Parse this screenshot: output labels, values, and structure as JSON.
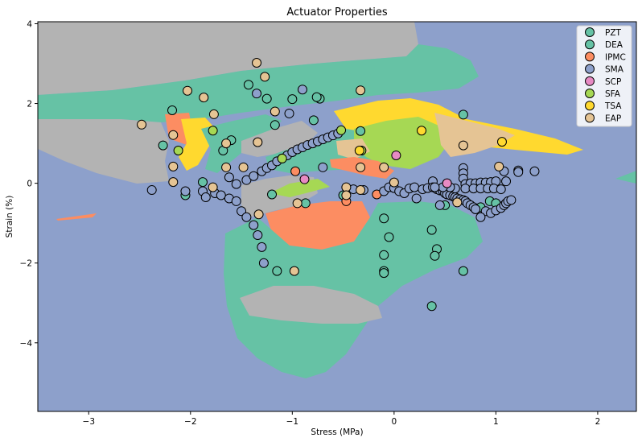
{
  "chart_data": {
    "type": "scatter",
    "title": "Actuator Properties",
    "xlabel": "Stress (MPa)",
    "ylabel": "Strain (%)",
    "xlim": [
      -3.5,
      2.38
    ],
    "ylim": [
      -5.72,
      4.05
    ],
    "xticks": [
      -3,
      -2,
      -1,
      0,
      1,
      2
    ],
    "yticks": [
      -4,
      -2,
      0,
      2,
      4
    ],
    "xtick_labels": [
      "−3",
      "−2",
      "−1",
      "0",
      "1",
      "2"
    ],
    "ytick_labels": [
      "−4",
      "−2",
      "0",
      "2",
      "4"
    ],
    "legend_position": "top-right",
    "background_regions": "decision-boundary color regions per class",
    "colors": {
      "PZT": "#66c2a5",
      "DEA": "#66c2a5",
      "IPMC": "#fc8d62",
      "SMA": "#8da0cb",
      "SCP": "#e78ac3",
      "SFA": "#a6d854",
      "TSA": "#ffd92f",
      "EAP": "#e5c494",
      "Other": "#b3b3b3"
    },
    "series": [
      {
        "name": "PZT",
        "points": [
          [
            -0.87,
            -0.5
          ],
          [
            0.85,
            -0.6
          ],
          [
            0.94,
            -0.45
          ],
          [
            1.0,
            -0.5
          ],
          [
            0.5,
            -0.55
          ],
          [
            0.8,
            -0.65
          ]
        ]
      },
      {
        "name": "DEA",
        "points": [
          [
            -2.27,
            0.95
          ],
          [
            -2.18,
            1.83
          ],
          [
            -1.88,
            0.03
          ],
          [
            -1.68,
            0.82
          ],
          [
            -1.6,
            1.08
          ],
          [
            -1.43,
            2.47
          ],
          [
            -1.25,
            2.12
          ],
          [
            -1.17,
            1.46
          ],
          [
            -1.15,
            -2.2
          ],
          [
            -1.0,
            2.11
          ],
          [
            -0.79,
            1.58
          ],
          [
            -0.73,
            2.12
          ],
          [
            -0.76,
            2.16
          ],
          [
            -0.33,
            1.31
          ],
          [
            -0.1,
            -0.88
          ],
          [
            -0.1,
            -1.8
          ],
          [
            -0.1,
            -2.2
          ],
          [
            -0.1,
            -2.25
          ],
          [
            -0.05,
            -1.35
          ],
          [
            0.37,
            -1.17
          ],
          [
            0.37,
            -3.08
          ],
          [
            0.42,
            -1.65
          ],
          [
            0.4,
            -1.82
          ],
          [
            0.68,
            1.72
          ],
          [
            0.68,
            -2.2
          ],
          [
            -1.2,
            -0.28
          ],
          [
            -0.5,
            -0.3
          ],
          [
            -2.05,
            -0.3
          ]
        ]
      },
      {
        "name": "IPMC",
        "points": [
          [
            -0.97,
            0.3
          ],
          [
            -0.17,
            -0.28
          ],
          [
            -0.47,
            -0.45
          ]
        ]
      },
      {
        "name": "SMA",
        "points": [
          [
            -2.38,
            -0.17
          ],
          [
            -2.05,
            -0.2
          ],
          [
            -1.88,
            -0.2
          ],
          [
            -1.85,
            -0.35
          ],
          [
            -1.76,
            -0.25
          ],
          [
            -1.7,
            -0.3
          ],
          [
            -1.62,
            -0.38
          ],
          [
            -1.55,
            -0.45
          ],
          [
            -1.5,
            -0.7
          ],
          [
            -1.45,
            -0.85
          ],
          [
            -1.38,
            -1.05
          ],
          [
            -1.34,
            -1.3
          ],
          [
            -1.3,
            -1.6
          ],
          [
            -1.28,
            -2.0
          ],
          [
            -1.62,
            0.15
          ],
          [
            -1.55,
            -0.02
          ],
          [
            -1.45,
            0.08
          ],
          [
            -1.38,
            0.18
          ],
          [
            -1.3,
            0.3
          ],
          [
            -1.25,
            0.38
          ],
          [
            -1.2,
            0.45
          ],
          [
            -1.15,
            0.55
          ],
          [
            -1.1,
            0.62
          ],
          [
            -1.05,
            0.7
          ],
          [
            -1.0,
            0.78
          ],
          [
            -0.95,
            0.85
          ],
          [
            -0.9,
            0.9
          ],
          [
            -0.85,
            0.96
          ],
          [
            -0.8,
            1.0
          ],
          [
            -0.75,
            1.05
          ],
          [
            -0.7,
            1.1
          ],
          [
            -0.65,
            1.15
          ],
          [
            -0.6,
            1.2
          ],
          [
            -0.55,
            1.25
          ],
          [
            -1.35,
            2.25
          ],
          [
            -1.03,
            1.75
          ],
          [
            -0.9,
            2.35
          ],
          [
            -0.7,
            0.4
          ],
          [
            -0.4,
            -0.15
          ],
          [
            -0.3,
            -0.17
          ],
          [
            -0.1,
            -0.2
          ],
          [
            -0.05,
            -0.1
          ],
          [
            0.0,
            -0.12
          ],
          [
            0.05,
            -0.2
          ],
          [
            0.1,
            -0.25
          ],
          [
            0.15,
            -0.13
          ],
          [
            0.2,
            -0.1
          ],
          [
            0.22,
            -0.38
          ],
          [
            0.28,
            -0.15
          ],
          [
            0.33,
            -0.12
          ],
          [
            0.38,
            0.05
          ],
          [
            0.38,
            -0.1
          ],
          [
            0.42,
            -0.15
          ],
          [
            0.45,
            -0.18
          ],
          [
            0.48,
            -0.2
          ],
          [
            0.5,
            -0.25
          ],
          [
            0.52,
            -0.28
          ],
          [
            0.55,
            -0.3
          ],
          [
            0.58,
            -0.33
          ],
          [
            0.6,
            -0.35
          ],
          [
            0.62,
            -0.38
          ],
          [
            0.65,
            -0.4
          ],
          [
            0.68,
            -0.42
          ],
          [
            0.7,
            -0.45
          ],
          [
            0.72,
            -0.5
          ],
          [
            0.75,
            -0.55
          ],
          [
            0.78,
            -0.6
          ],
          [
            0.8,
            -0.65
          ],
          [
            0.68,
            0.38
          ],
          [
            0.68,
            0.25
          ],
          [
            0.68,
            0.12
          ],
          [
            0.7,
            -0.02
          ],
          [
            0.75,
            0.0
          ],
          [
            0.8,
            0.0
          ],
          [
            0.85,
            0.02
          ],
          [
            0.9,
            0.02
          ],
          [
            0.95,
            0.03
          ],
          [
            1.0,
            0.05
          ],
          [
            0.9,
            -0.7
          ],
          [
            0.95,
            -0.75
          ],
          [
            0.85,
            -0.85
          ],
          [
            1.0,
            -0.68
          ],
          [
            1.05,
            -0.62
          ],
          [
            1.08,
            -0.55
          ],
          [
            1.1,
            -0.5
          ],
          [
            1.12,
            -0.45
          ],
          [
            1.15,
            -0.42
          ],
          [
            1.08,
            0.3
          ],
          [
            1.1,
            0.05
          ],
          [
            1.22,
            0.32
          ],
          [
            1.22,
            0.28
          ],
          [
            1.38,
            0.3
          ],
          [
            0.45,
            -0.55
          ],
          [
            0.6,
            -0.13
          ],
          [
            0.7,
            -0.13
          ],
          [
            0.78,
            -0.13
          ],
          [
            0.85,
            -0.13
          ],
          [
            0.92,
            -0.13
          ],
          [
            0.98,
            -0.13
          ],
          [
            1.05,
            -0.15
          ],
          [
            0.55,
            -0.1
          ],
          [
            0.48,
            -0.1
          ],
          [
            0.4,
            -0.1
          ]
        ]
      },
      {
        "name": "SCP",
        "points": [
          [
            -0.88,
            0.1
          ],
          [
            0.02,
            0.7
          ],
          [
            0.52,
            0.0
          ]
        ]
      },
      {
        "name": "SFA",
        "points": [
          [
            -2.12,
            0.82
          ],
          [
            -1.78,
            1.32
          ],
          [
            -1.1,
            0.62
          ],
          [
            -0.52,
            1.33
          ],
          [
            -0.32,
            0.82
          ]
        ]
      },
      {
        "name": "TSA",
        "points": [
          [
            -0.34,
            0.82
          ],
          [
            0.27,
            1.32
          ],
          [
            1.06,
            1.04
          ]
        ]
      },
      {
        "name": "EAP",
        "points": [
          [
            -2.48,
            1.47
          ],
          [
            -2.17,
            1.21
          ],
          [
            -2.17,
            0.42
          ],
          [
            -2.17,
            0.03
          ],
          [
            -2.03,
            2.32
          ],
          [
            -1.87,
            2.15
          ],
          [
            -1.77,
            1.73
          ],
          [
            -1.65,
            1.0
          ],
          [
            -1.65,
            0.4
          ],
          [
            -1.48,
            0.4
          ],
          [
            -1.78,
            -0.1
          ],
          [
            -1.35,
            3.02
          ],
          [
            -1.27,
            2.67
          ],
          [
            -1.34,
            1.03
          ],
          [
            -1.33,
            -0.78
          ],
          [
            -1.17,
            1.8
          ],
          [
            -0.95,
            -0.5
          ],
          [
            -0.98,
            -2.2
          ],
          [
            -0.33,
            2.33
          ],
          [
            -0.33,
            0.4
          ],
          [
            -0.33,
            -0.17
          ],
          [
            -0.47,
            -0.1
          ],
          [
            -0.47,
            -0.3
          ],
          [
            -0.1,
            0.4
          ],
          [
            0.0,
            0.02
          ],
          [
            0.62,
            -0.48
          ],
          [
            0.68,
            0.95
          ],
          [
            1.03,
            0.42
          ]
        ]
      }
    ]
  }
}
